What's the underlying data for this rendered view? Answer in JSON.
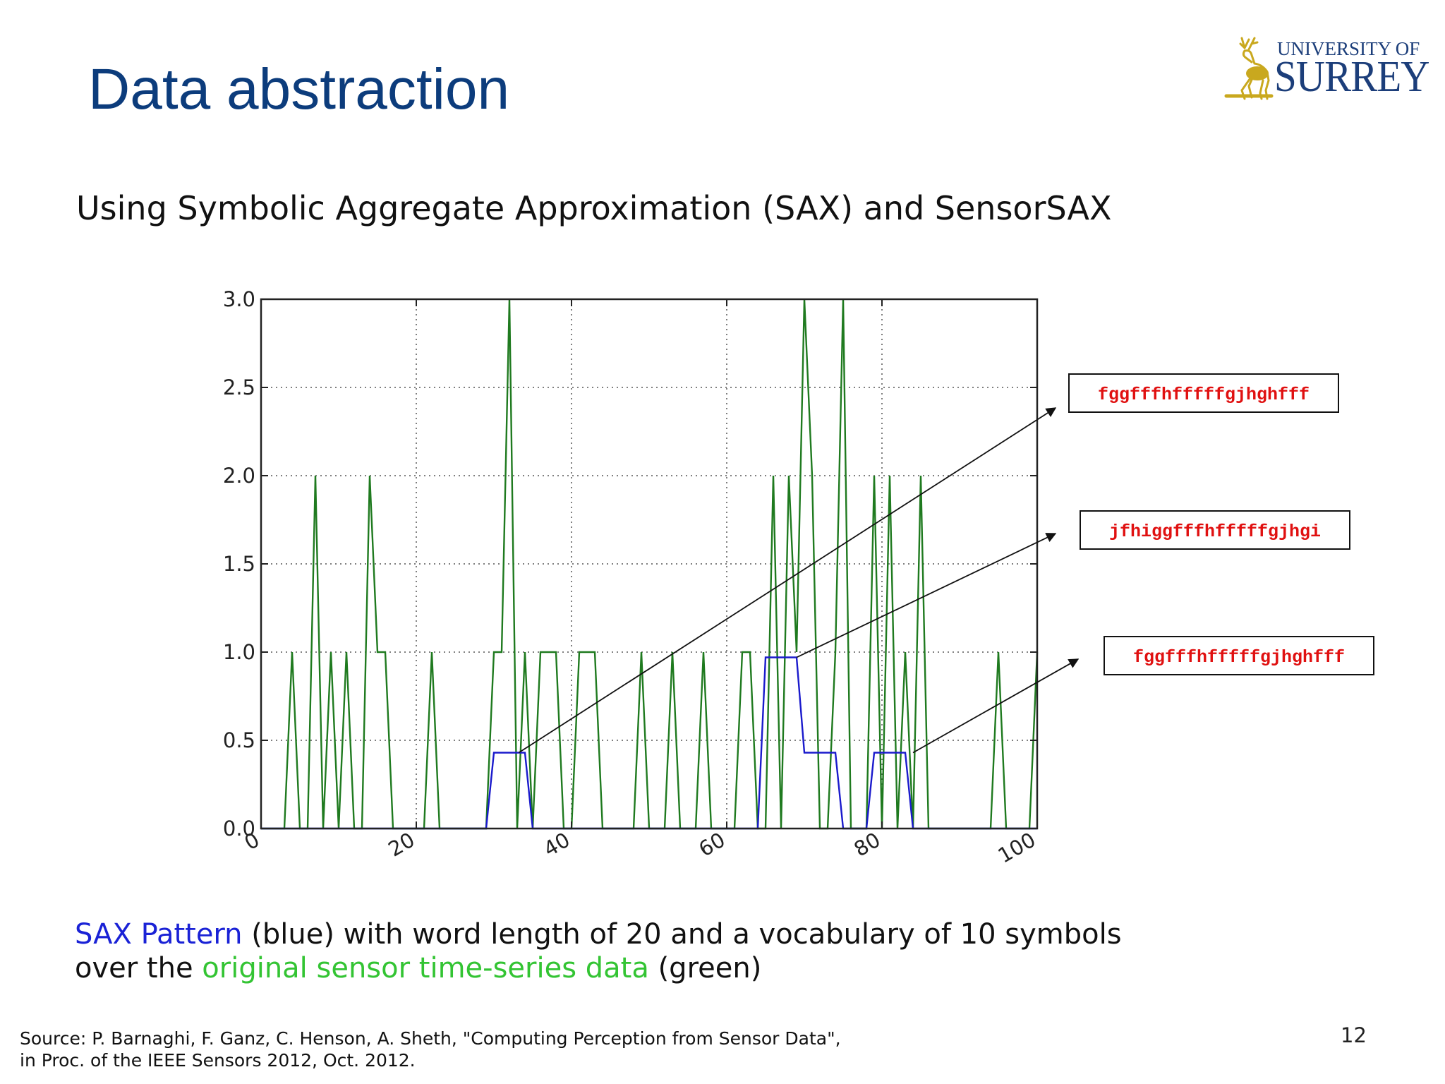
{
  "slide": {
    "title": "Data abstraction",
    "subtitle": "Using Symbolic Aggregate Approximation (SAX) and SensorSAX",
    "caption_line1_highlight": "SAX Pattern",
    "caption_line1_rest": " (blue) with word length of 20 and a vocabulary of 10 symbols",
    "caption_line2_start": "over the ",
    "caption_line2_highlight": "original sensor time-series data",
    "caption_line2_end": " (green)",
    "source_line1": "Source: P. Barnaghi, F. Ganz, C. Henson, A. Sheth, \"Computing Perception from Sensor Data\",",
    "source_line2": "in Proc. of the IEEE Sensors 2012, Oct. 2012.",
    "page_number": "12"
  },
  "logo": {
    "line1": "UNIVERSITY OF",
    "line2": "SURREY",
    "icon": "stag-icon",
    "color": "#1c3e7a",
    "emblem_color": "#c9a81e"
  },
  "chart_data": {
    "type": "line",
    "xlim": [
      0,
      100
    ],
    "ylim": [
      0,
      3
    ],
    "xticks": [
      0,
      20,
      40,
      60,
      80,
      100
    ],
    "yticks": [
      0.0,
      0.5,
      1.0,
      1.5,
      2.0,
      2.5,
      3.0
    ],
    "grid": true,
    "series": [
      {
        "color": "#1f7a1f",
        "x": [
          0,
          3,
          4,
          5,
          6,
          7,
          8,
          9,
          10,
          11,
          12,
          13,
          14,
          15,
          16,
          17,
          18,
          19,
          20,
          21,
          22,
          23,
          24,
          25,
          26,
          27,
          28,
          29,
          30,
          31,
          32,
          33,
          34,
          35,
          36,
          37,
          38,
          39,
          40,
          41,
          42,
          43,
          44,
          45,
          46,
          47,
          48,
          49,
          50,
          51,
          52,
          53,
          54,
          55,
          56,
          57,
          58,
          59,
          60,
          61,
          62,
          63,
          64,
          65,
          66,
          67,
          68,
          69,
          70,
          71,
          72,
          73,
          74,
          75,
          76,
          77,
          78,
          79,
          80,
          81,
          82,
          83,
          84,
          85,
          86,
          87,
          88,
          89,
          90,
          91,
          92,
          93,
          94,
          95,
          96,
          97,
          98,
          99,
          100
        ],
        "y": [
          0,
          0,
          1,
          0,
          0,
          2,
          0,
          1,
          0,
          1,
          0,
          0,
          2,
          1,
          1,
          0,
          0,
          0,
          0,
          0,
          1,
          0,
          0,
          0,
          0,
          0,
          0,
          0,
          1,
          1,
          3,
          0,
          1,
          0,
          1,
          1,
          1,
          0,
          0,
          1,
          1,
          1,
          0,
          0,
          0,
          0,
          0,
          1,
          0,
          0,
          0,
          1,
          0,
          0,
          0,
          1,
          0,
          0,
          0,
          0,
          1,
          1,
          0,
          0,
          2,
          0,
          2,
          1,
          3,
          2,
          0,
          0,
          1,
          3,
          0,
          0,
          0,
          2,
          0,
          2,
          0,
          1,
          0,
          2,
          0,
          0,
          0,
          0,
          0,
          0,
          0,
          0,
          0,
          1,
          0,
          0,
          0,
          0,
          1
        ]
      },
      {
        "color": "#1a1acc",
        "x": [
          0,
          29,
          30,
          31,
          32,
          33,
          34,
          35,
          36,
          37,
          38,
          39,
          40,
          41,
          42,
          43,
          44,
          45,
          46,
          47,
          48,
          49,
          50,
          51,
          52,
          53,
          54,
          55,
          56,
          57,
          58,
          59,
          60,
          61,
          62,
          63,
          64,
          65,
          66,
          67,
          68,
          69,
          70,
          71,
          72,
          73,
          74,
          75,
          76,
          77,
          78,
          79,
          80,
          81,
          82,
          83,
          84,
          85,
          86,
          87,
          88,
          89,
          90,
          91,
          92,
          93,
          94,
          95,
          96,
          97,
          98,
          99,
          100
        ],
        "y": [
          0,
          0,
          0.43,
          0.43,
          0.43,
          0.43,
          0.43,
          0,
          0,
          0,
          0,
          0,
          0,
          0,
          0,
          0,
          0,
          0,
          0,
          0,
          0,
          0,
          0,
          0,
          0,
          0,
          0,
          0,
          0,
          0,
          0,
          0,
          0,
          0,
          0,
          0,
          0,
          0.97,
          0.97,
          0.97,
          0.97,
          0.97,
          0.43,
          0.43,
          0.43,
          0.43,
          0.43,
          0,
          0,
          0,
          0,
          0.43,
          0.43,
          0.43,
          0.43,
          0.43,
          0,
          0,
          0,
          0,
          0,
          0,
          0,
          0,
          0,
          0,
          0,
          0,
          0,
          0,
          0,
          0,
          0
        ]
      }
    ],
    "annotations": [
      {
        "text": "fggfffhfffffgjhghfff",
        "from": [
          33.2,
          0.43
        ],
        "color": "#e01010"
      },
      {
        "text": "jfhiggfffhfffffgjhgi",
        "from": [
          69.0,
          0.97
        ],
        "color": "#e01010"
      },
      {
        "text": "fggfffhfffffgjhghfff",
        "from": [
          84.0,
          0.43
        ],
        "color": "#e01010"
      }
    ]
  }
}
